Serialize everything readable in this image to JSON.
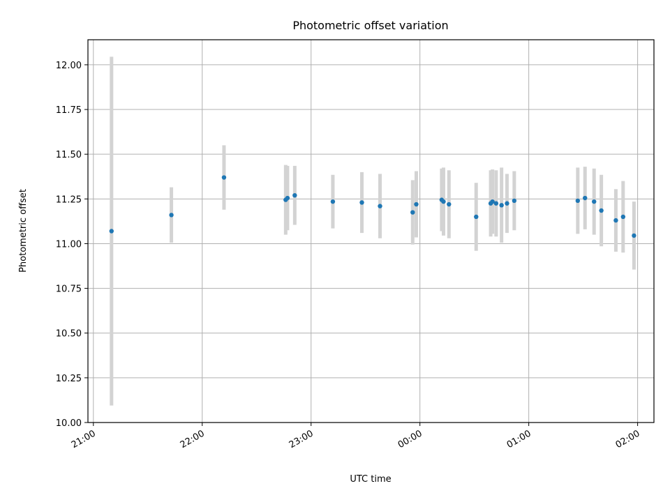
{
  "chart_data": {
    "type": "scatter",
    "title": "Photometric offset variation",
    "xlabel": "UTC time",
    "ylabel": "Photometric offset",
    "x_axis_type": "time",
    "x_ticks": [
      "21:00",
      "22:00",
      "23:00",
      "00:00",
      "01:00",
      "02:00"
    ],
    "y_ticks": [
      "10.00",
      "10.25",
      "10.50",
      "10.75",
      "11.00",
      "11.25",
      "11.50",
      "11.75",
      "12.00"
    ],
    "xlim": [
      "20:57",
      "02:09"
    ],
    "ylim": [
      10.0,
      12.14
    ],
    "grid": true,
    "marker_color": "#1f77b4",
    "errorbar_color": "#d3d3d3",
    "points": [
      {
        "x": "21:10",
        "y": 11.07,
        "err": 0.975
      },
      {
        "x": "21:43",
        "y": 11.16,
        "err": 0.155
      },
      {
        "x": "22:12",
        "y": 11.37,
        "err": 0.18
      },
      {
        "x": "22:46",
        "y": 11.245,
        "err": 0.195
      },
      {
        "x": "22:47",
        "y": 11.255,
        "err": 0.18
      },
      {
        "x": "22:51",
        "y": 11.27,
        "err": 0.165
      },
      {
        "x": "23:12",
        "y": 11.235,
        "err": 0.15
      },
      {
        "x": "23:28",
        "y": 11.23,
        "err": 0.17
      },
      {
        "x": "23:38",
        "y": 11.21,
        "err": 0.18
      },
      {
        "x": "23:56",
        "y": 11.175,
        "err": 0.18
      },
      {
        "x": "23:58",
        "y": 11.22,
        "err": 0.185
      },
      {
        "x": "00:12",
        "y": 11.245,
        "err": 0.175
      },
      {
        "x": "00:13",
        "y": 11.235,
        "err": 0.19
      },
      {
        "x": "00:16",
        "y": 11.22,
        "err": 0.19
      },
      {
        "x": "00:31",
        "y": 11.15,
        "err": 0.19
      },
      {
        "x": "00:39",
        "y": 11.225,
        "err": 0.185
      },
      {
        "x": "00:40",
        "y": 11.235,
        "err": 0.18
      },
      {
        "x": "00:42",
        "y": 11.225,
        "err": 0.185
      },
      {
        "x": "00:45",
        "y": 11.215,
        "err": 0.21
      },
      {
        "x": "00:48",
        "y": 11.225,
        "err": 0.165
      },
      {
        "x": "00:52",
        "y": 11.24,
        "err": 0.165
      },
      {
        "x": "01:27",
        "y": 11.24,
        "err": 0.185
      },
      {
        "x": "01:31",
        "y": 11.255,
        "err": 0.175
      },
      {
        "x": "01:36",
        "y": 11.235,
        "err": 0.185
      },
      {
        "x": "01:40",
        "y": 11.185,
        "err": 0.2
      },
      {
        "x": "01:48",
        "y": 11.13,
        "err": 0.175
      },
      {
        "x": "01:52",
        "y": 11.15,
        "err": 0.2
      },
      {
        "x": "01:58",
        "y": 11.045,
        "err": 0.19
      }
    ]
  }
}
